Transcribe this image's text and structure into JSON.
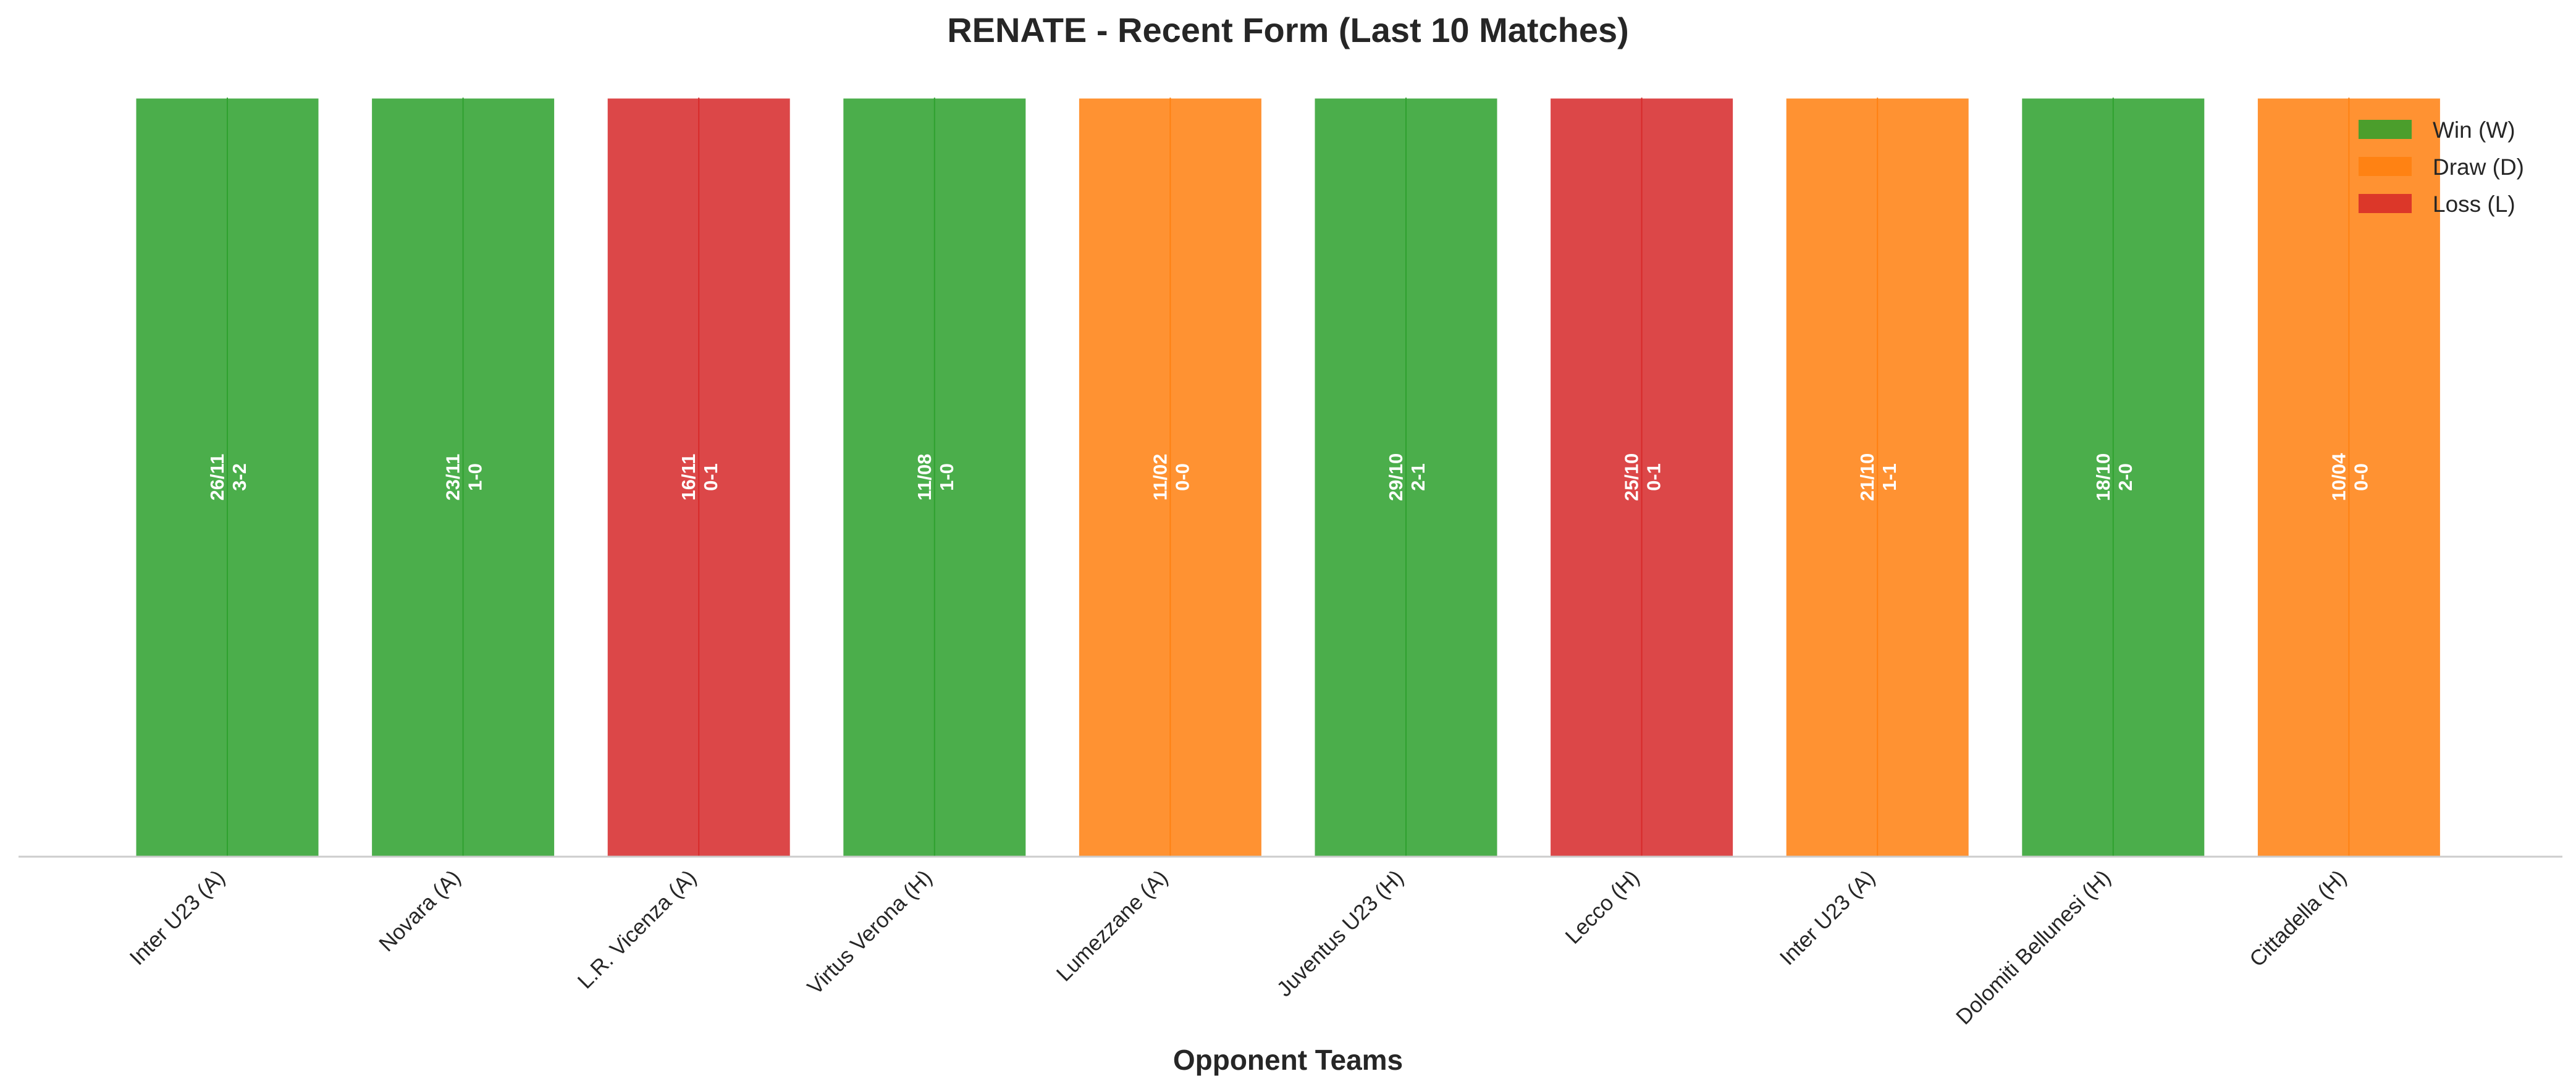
{
  "chart_data": {
    "type": "bar",
    "title": "RENATE - Recent Form (Last 10 Matches)",
    "xlabel": "Opponent Teams",
    "ylabel": "",
    "grid": false,
    "legend_placement": "top-right",
    "categories": [
      "Inter U23 (A)",
      "Novara (A)",
      "L.R. Vicenza (A)",
      "Virtus Verona (H)",
      "Lumezzane (A)",
      "Juventus U23 (H)",
      "Lecco (H)",
      "Inter U23 (A)",
      "Dolomiti Bellunesi (H)",
      "Cittadella (H)"
    ],
    "values": [
      1,
      1,
      1,
      1,
      1,
      1,
      1,
      1,
      1,
      1
    ],
    "results": [
      "W",
      "W",
      "L",
      "W",
      "D",
      "W",
      "L",
      "D",
      "W",
      "D"
    ],
    "dates": [
      "26/11",
      "23/11",
      "16/11",
      "11/08",
      "11/02",
      "29/10",
      "25/10",
      "21/10",
      "18/10",
      "10/04"
    ],
    "scores": [
      "3-2",
      "1-0",
      "0-1",
      "1-0",
      "0-0",
      "2-1",
      "0-1",
      "1-1",
      "2-0",
      "0-0"
    ],
    "legend": [
      {
        "key": "W",
        "label": "Win (W)",
        "color": "#2ca02c"
      },
      {
        "key": "D",
        "label": "Draw (D)",
        "color": "#ff7f0e"
      },
      {
        "key": "L",
        "label": "Loss (L)",
        "color": "#d62728"
      }
    ]
  }
}
